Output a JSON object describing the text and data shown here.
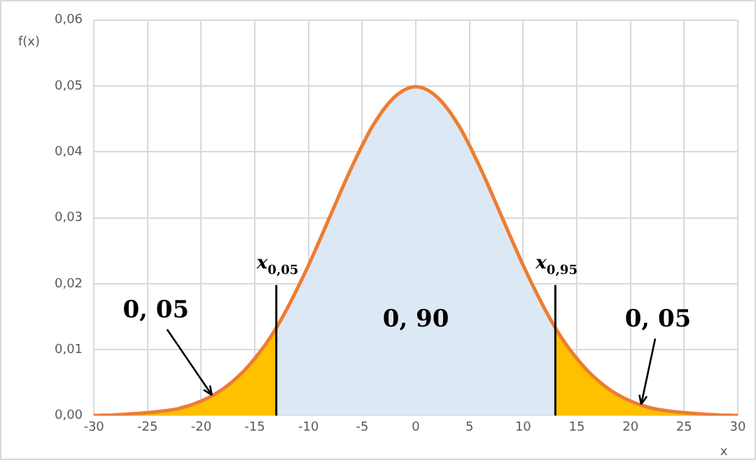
{
  "chart_data": {
    "type": "area",
    "xlabel": "x",
    "ylabel": "f(x)",
    "xlim": [
      -30,
      30
    ],
    "xticks": [
      -30,
      -25,
      -20,
      -15,
      -10,
      -5,
      0,
      5,
      10,
      15,
      20,
      25,
      30
    ],
    "ylim": [
      0,
      0.06
    ],
    "yticks": [
      {
        "value": 0,
        "label": "0,00"
      },
      {
        "value": 0.01,
        "label": "0,01"
      },
      {
        "value": 0.02,
        "label": "0,02"
      },
      {
        "value": 0.03,
        "label": "0,03"
      },
      {
        "value": 0.04,
        "label": "0,04"
      },
      {
        "value": 0.05,
        "label": "0,05"
      },
      {
        "value": 0.06,
        "label": "0,06"
      }
    ],
    "grid": true,
    "legend": false,
    "marker": "none",
    "series": [
      {
        "color": "#ffc000",
        "x": [
          -30,
          -28,
          -26,
          -24,
          -22,
          -20,
          -18,
          -16,
          -14,
          -13
        ],
        "values": [
          0.0,
          0.0001,
          0.0003,
          0.0006,
          0.0011,
          0.0022,
          0.004,
          0.0068,
          0.0108,
          0.0133
        ]
      },
      {
        "color": "#dde8f5",
        "x": [
          -13,
          -12,
          -10,
          -8,
          -6,
          -4,
          -2,
          0,
          2,
          4,
          6,
          8,
          10,
          12,
          13
        ],
        "values": [
          0.0133,
          0.0162,
          0.0228,
          0.0302,
          0.0376,
          0.044,
          0.0483,
          0.0499,
          0.0483,
          0.044,
          0.0376,
          0.0302,
          0.0228,
          0.0162,
          0.0133
        ]
      },
      {
        "color": "#ffc000",
        "x": [
          13,
          14,
          16,
          18,
          20,
          22,
          24,
          26,
          28,
          30
        ],
        "values": [
          0.0133,
          0.0108,
          0.0068,
          0.004,
          0.0022,
          0.0011,
          0.0006,
          0.0003,
          0.0001,
          0.0
        ]
      },
      {
        "type": "line",
        "color": "#ed7d31",
        "x": [
          -30,
          -28,
          -26,
          -24,
          -22,
          -20,
          -18,
          -16,
          -14,
          -13,
          -12,
          -10,
          -8,
          -6,
          -4,
          -2,
          0,
          2,
          4,
          6,
          8,
          10,
          12,
          13,
          14,
          16,
          18,
          20,
          22,
          24,
          26,
          28,
          30
        ],
        "values": [
          0.0,
          0.0001,
          0.0003,
          0.0006,
          0.0011,
          0.0022,
          0.004,
          0.0068,
          0.0108,
          0.0133,
          0.0162,
          0.0228,
          0.0302,
          0.0376,
          0.044,
          0.0483,
          0.0499,
          0.0483,
          0.044,
          0.0376,
          0.0302,
          0.0228,
          0.0162,
          0.0133,
          0.0108,
          0.0068,
          0.004,
          0.0022,
          0.0011,
          0.0006,
          0.0003,
          0.0001,
          0.0
        ]
      }
    ],
    "ref_lines": [
      {
        "axis": "x",
        "value": -13,
        "label": "x$_{0,05}$",
        "color": "#000000"
      },
      {
        "axis": "x",
        "value": 13,
        "label": "x$_{0,95}$",
        "color": "#000000"
      }
    ],
    "annotations": [
      {
        "text": "0, 05",
        "x": -19,
        "y": 0.0031
      },
      "0, 90",
      {
        "text": "0, 05",
        "x": 21,
        "y": 0.0017
      }
    ]
  }
}
